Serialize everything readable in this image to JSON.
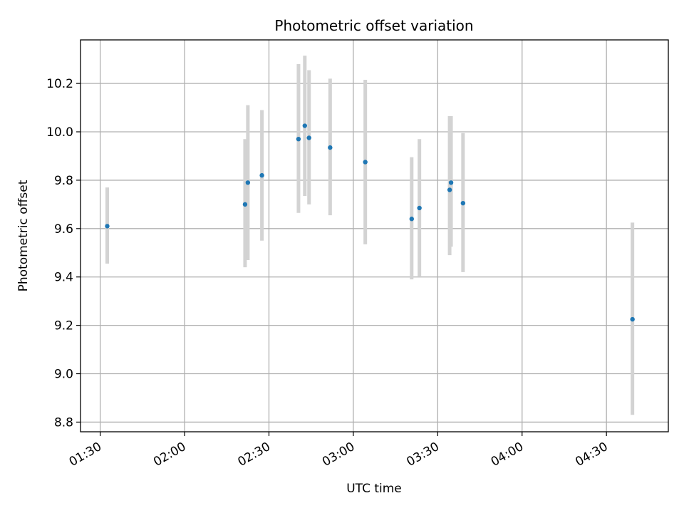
{
  "chart_data": {
    "type": "scatter",
    "title": "Photometric offset variation",
    "xlabel": "UTC time",
    "ylabel": "Photometric offset",
    "x_ticks": [
      "01:30",
      "02:00",
      "02:30",
      "03:00",
      "03:30",
      "04:00",
      "04:30"
    ],
    "y_ticks": [
      "8.8",
      "9.0",
      "9.2",
      "9.4",
      "9.6",
      "9.8",
      "10.0",
      "10.2"
    ],
    "xlim": [
      "01:23",
      "04:52"
    ],
    "ylim": [
      8.76,
      10.38
    ],
    "grid": true,
    "error_bar_color": "#d3d3d3",
    "point_color": "#1f77b4",
    "points": [
      {
        "x": "01:32:30",
        "y": 9.61,
        "err_low": 9.455,
        "err_high": 9.77
      },
      {
        "x": "02:21:30",
        "y": 9.7,
        "err_low": 9.44,
        "err_high": 9.97
      },
      {
        "x": "02:22:30",
        "y": 9.79,
        "err_low": 9.47,
        "err_high": 10.11
      },
      {
        "x": "02:27:30",
        "y": 9.82,
        "err_low": 9.55,
        "err_high": 10.09
      },
      {
        "x": "02:40:30",
        "y": 9.97,
        "err_low": 9.665,
        "err_high": 10.28
      },
      {
        "x": "02:42:45",
        "y": 10.025,
        "err_low": 9.735,
        "err_high": 10.315
      },
      {
        "x": "02:44:15",
        "y": 9.975,
        "err_low": 9.7,
        "err_high": 10.255
      },
      {
        "x": "02:51:45",
        "y": 9.935,
        "err_low": 9.655,
        "err_high": 10.22
      },
      {
        "x": "03:04:15",
        "y": 9.875,
        "err_low": 9.535,
        "err_high": 10.215
      },
      {
        "x": "03:20:45",
        "y": 9.64,
        "err_low": 9.39,
        "err_high": 9.895
      },
      {
        "x": "03:23:30",
        "y": 9.685,
        "err_low": 9.4,
        "err_high": 9.97
      },
      {
        "x": "03:34:15",
        "y": 9.76,
        "err_low": 9.49,
        "err_high": 10.065
      },
      {
        "x": "03:34:45",
        "y": 9.79,
        "err_low": 9.525,
        "err_high": 10.065
      },
      {
        "x": "03:39:00",
        "y": 9.705,
        "err_low": 9.42,
        "err_high": 9.995
      },
      {
        "x": "04:39:15",
        "y": 9.225,
        "err_low": 8.83,
        "err_high": 9.625
      }
    ]
  }
}
